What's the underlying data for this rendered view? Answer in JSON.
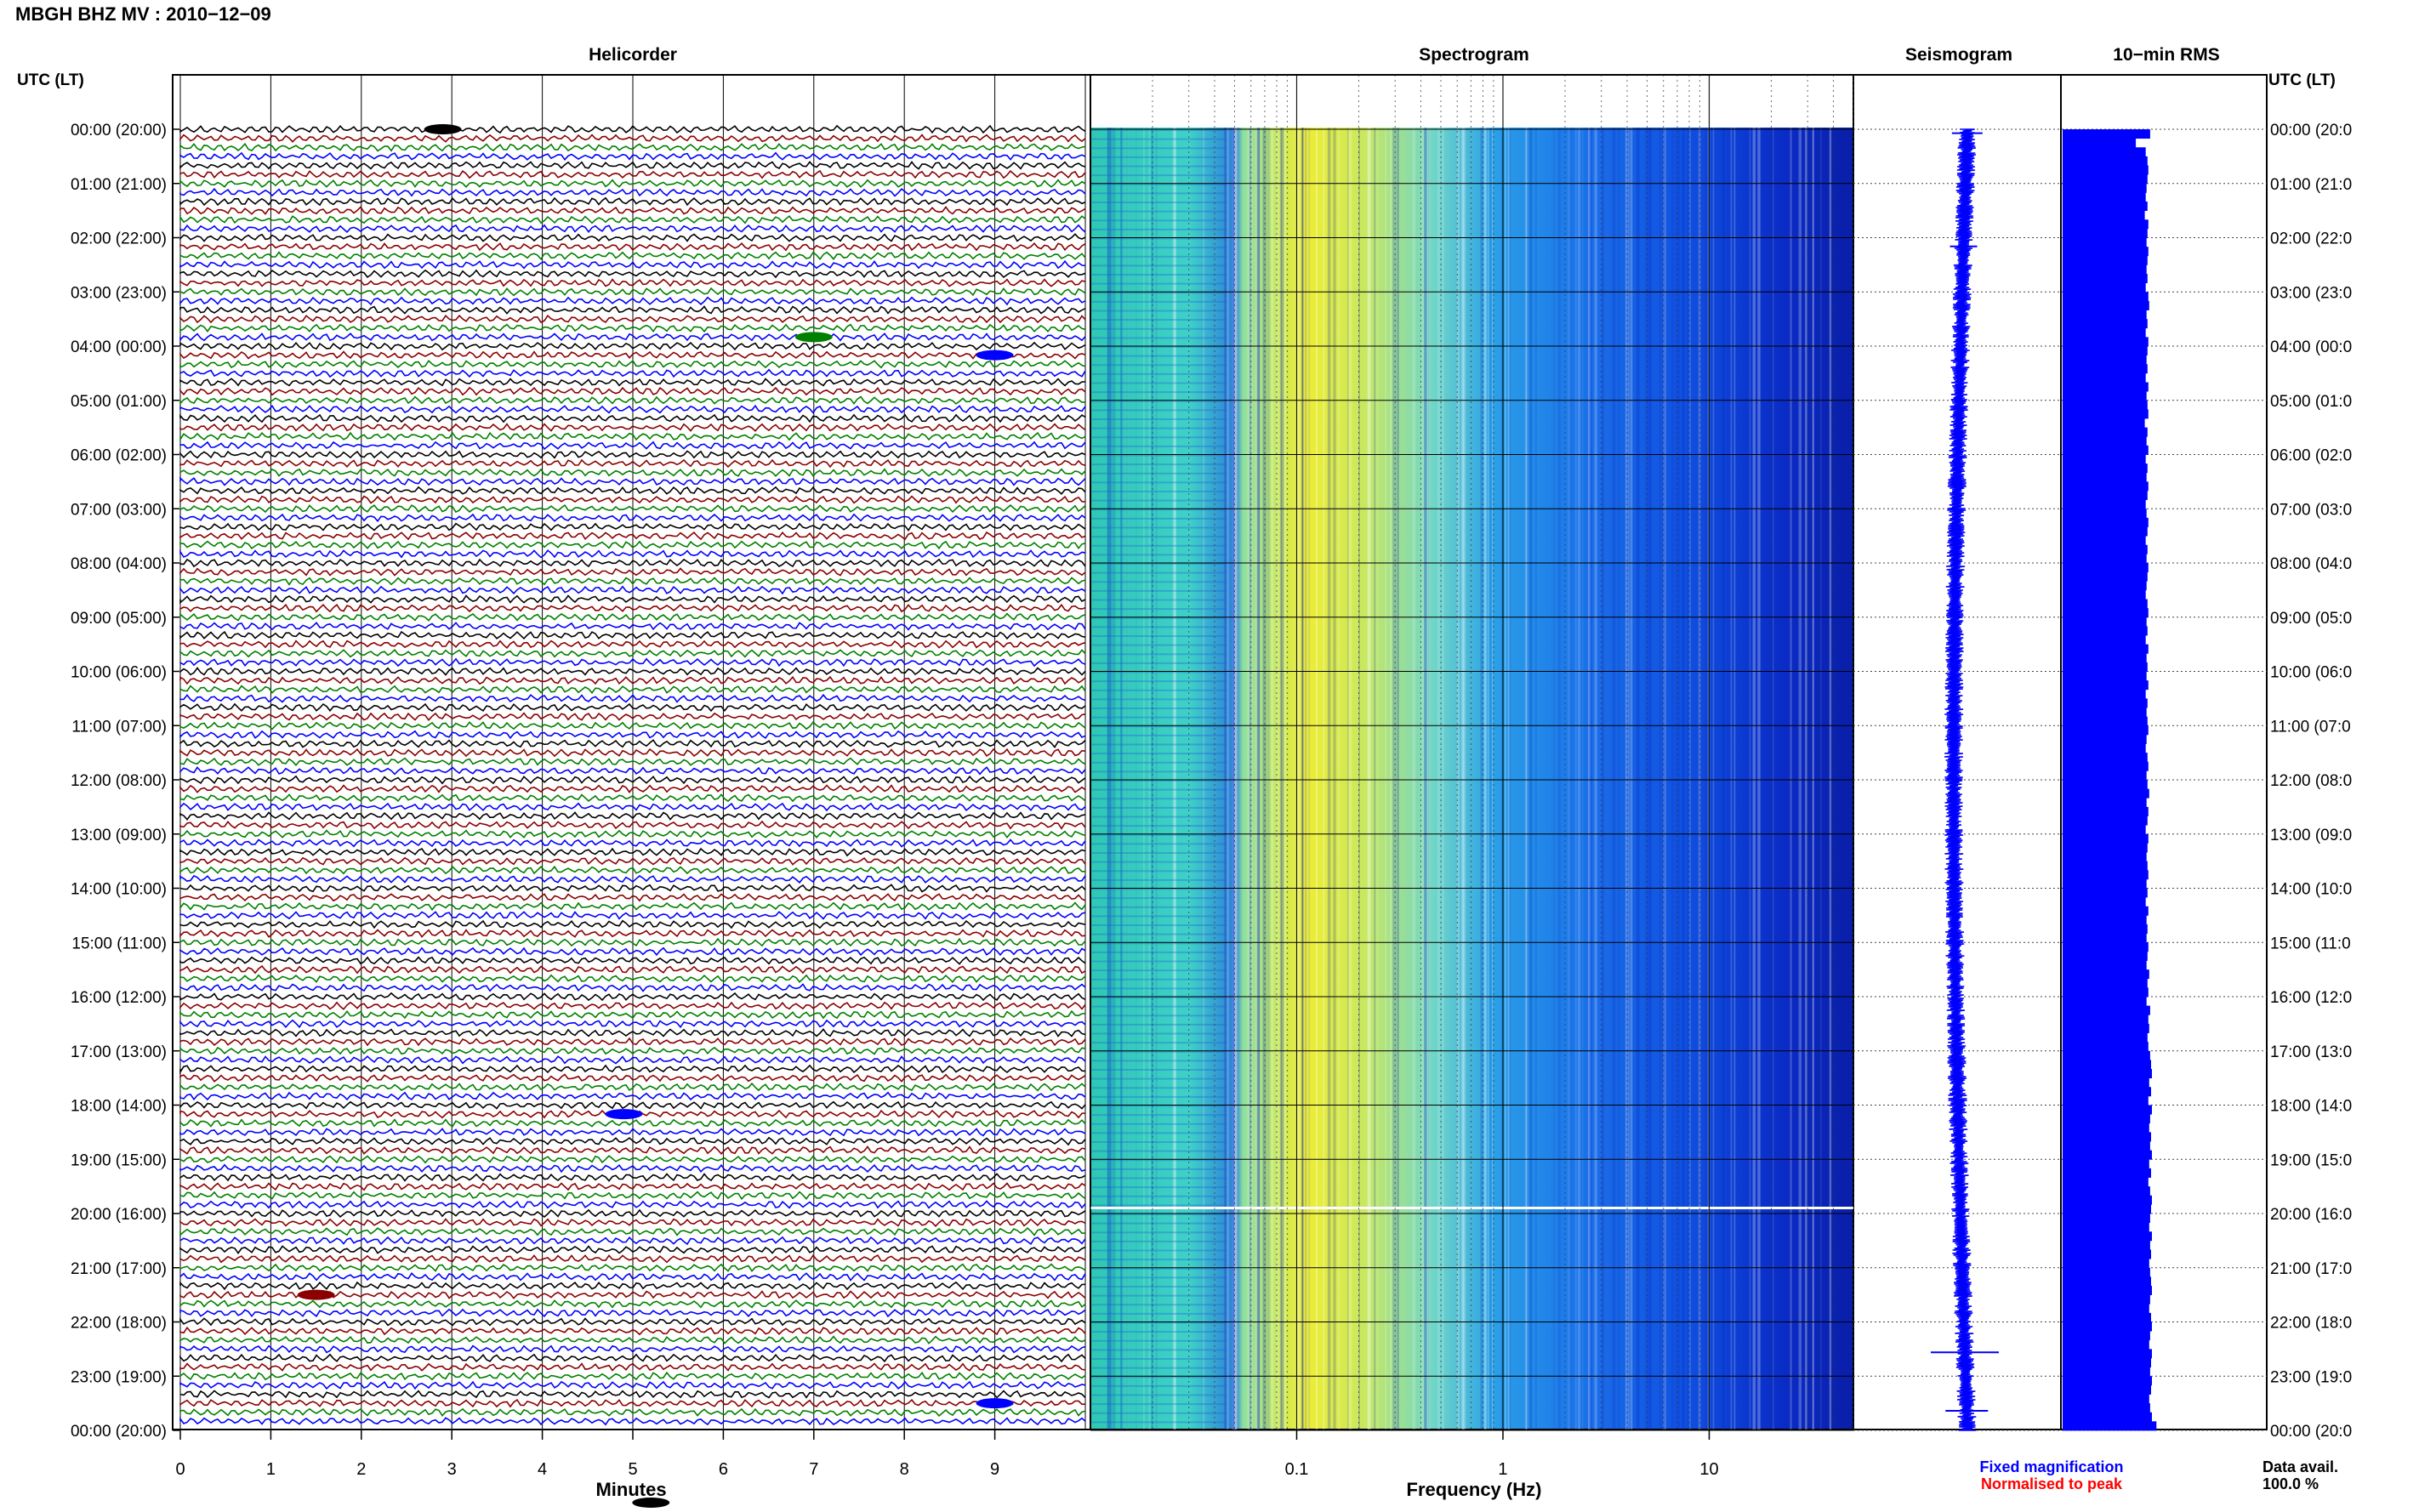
{
  "title": "MBGH BHZ MV : 2010−12−09",
  "axis_label_left": "UTC (LT)",
  "axis_label_right": "UTC (LT)",
  "panels": {
    "helicorder": "Helicorder",
    "spectrogram": "Spectrogram",
    "seismogram": "Seismogram",
    "rms": "10−min RMS"
  },
  "xlabels": {
    "helicorder": "Minutes",
    "spectrogram": "Frequency (Hz)"
  },
  "legend": {
    "fixed": "Fixed magnification",
    "normalised": "Normalised to peak",
    "fixed_color": "#0000ff",
    "normalised_color": "#ff0000"
  },
  "data_avail": {
    "label": "Data avail.",
    "value": "100.0 %"
  },
  "chart_data": {
    "type": "helicorder",
    "time_labels": [
      "00:00 (20:00)",
      "01:00 (21:00)",
      "02:00 (22:00)",
      "03:00 (23:00)",
      "04:00 (00:00)",
      "05:00 (01:00)",
      "06:00 (02:00)",
      "07:00 (03:00)",
      "08:00 (04:00)",
      "09:00 (05:00)",
      "10:00 (06:00)",
      "11:00 (07:00)",
      "12:00 (08:00)",
      "13:00 (09:00)",
      "14:00 (10:00)",
      "15:00 (11:00)",
      "16:00 (12:00)",
      "17:00 (13:00)",
      "18:00 (14:00)",
      "19:00 (15:00)",
      "20:00 (16:00)",
      "21:00 (17:00)",
      "22:00 (18:00)",
      "23:00 (19:00)",
      "00:00 (20:00)"
    ],
    "time_labels_right": [
      "00:00 (20:0",
      "01:00 (21:0",
      "02:00 (22:0",
      "03:00 (23:0",
      "04:00 (00:0",
      "05:00 (01:0",
      "06:00 (02:0",
      "07:00 (03:0",
      "08:00 (04:0",
      "09:00 (05:0",
      "10:00 (06:0",
      "11:00 (07:0",
      "12:00 (08:0",
      "13:00 (09:0",
      "14:00 (10:0",
      "15:00 (11:0",
      "16:00 (12:0",
      "17:00 (13:0",
      "18:00 (14:0",
      "19:00 (15:0",
      "20:00 (16:0",
      "21:00 (17:0",
      "22:00 (18:0",
      "23:00 (19:0",
      "00:00 (20:0"
    ],
    "minute_ticks": [
      "0",
      "1",
      "2",
      "3",
      "4",
      "5",
      "6",
      "7",
      "8",
      "9"
    ],
    "frequency_ticks": [
      "0.1",
      "1",
      "10"
    ],
    "frequency_range_hz": [
      0.01,
      50
    ],
    "traces_per_hour": 6,
    "trace_colors": [
      "#000000",
      "#8b0000",
      "#008000",
      "#0000ff"
    ],
    "rms_values": [
      0.98,
      0.82,
      0.93,
      0.95,
      0.96,
      0.95,
      0.94,
      0.93,
      0.95,
      0.92,
      0.96,
      0.95,
      0.94,
      0.96,
      0.95,
      0.94,
      0.95,
      0.93,
      0.96,
      0.97,
      0.94,
      0.95,
      0.93,
      0.96,
      0.95,
      0.94,
      0.95,
      0.93,
      0.96,
      0.94,
      0.95,
      0.96,
      0.92,
      0.95,
      0.94,
      0.96,
      0.93,
      0.95,
      0.94,
      0.96,
      0.95,
      0.93,
      0.94,
      0.96,
      0.95,
      0.93,
      0.95,
      0.94,
      0.96,
      0.95,
      0.94,
      0.93,
      0.95,
      0.96,
      0.94,
      0.95,
      0.93,
      0.96,
      0.94,
      0.95,
      0.94,
      0.96,
      0.93,
      0.95,
      0.94,
      0.95,
      0.96,
      0.94,
      0.93,
      0.95,
      0.96,
      0.94,
      0.95,
      0.97,
      0.94,
      0.96,
      0.95,
      0.93,
      0.96,
      0.95,
      0.94,
      0.95,
      0.96,
      0.94,
      0.95,
      0.93,
      0.96,
      0.94,
      0.95,
      0.94,
      0.96,
      0.95,
      0.94,
      0.97,
      0.95,
      0.96,
      0.94,
      0.98,
      0.96,
      0.97,
      0.95,
      0.96,
      0.98,
      0.99,
      1.0,
      0.97,
      0.99,
      0.96,
      1.0,
      0.98,
      0.97,
      0.99,
      0.98,
      1.0,
      0.97,
      0.99,
      0.96,
      0.98,
      1.0,
      0.99,
      0.98,
      0.97,
      1.0,
      0.98,
      0.99,
      0.97,
      0.98,
      0.99,
      1.0,
      0.98,
      0.97,
      0.99,
      1.0,
      0.98,
      0.97,
      1.0,
      0.99,
      0.98,
      1.0,
      0.99,
      0.97,
      0.98,
      1.0,
      1.05
    ]
  }
}
